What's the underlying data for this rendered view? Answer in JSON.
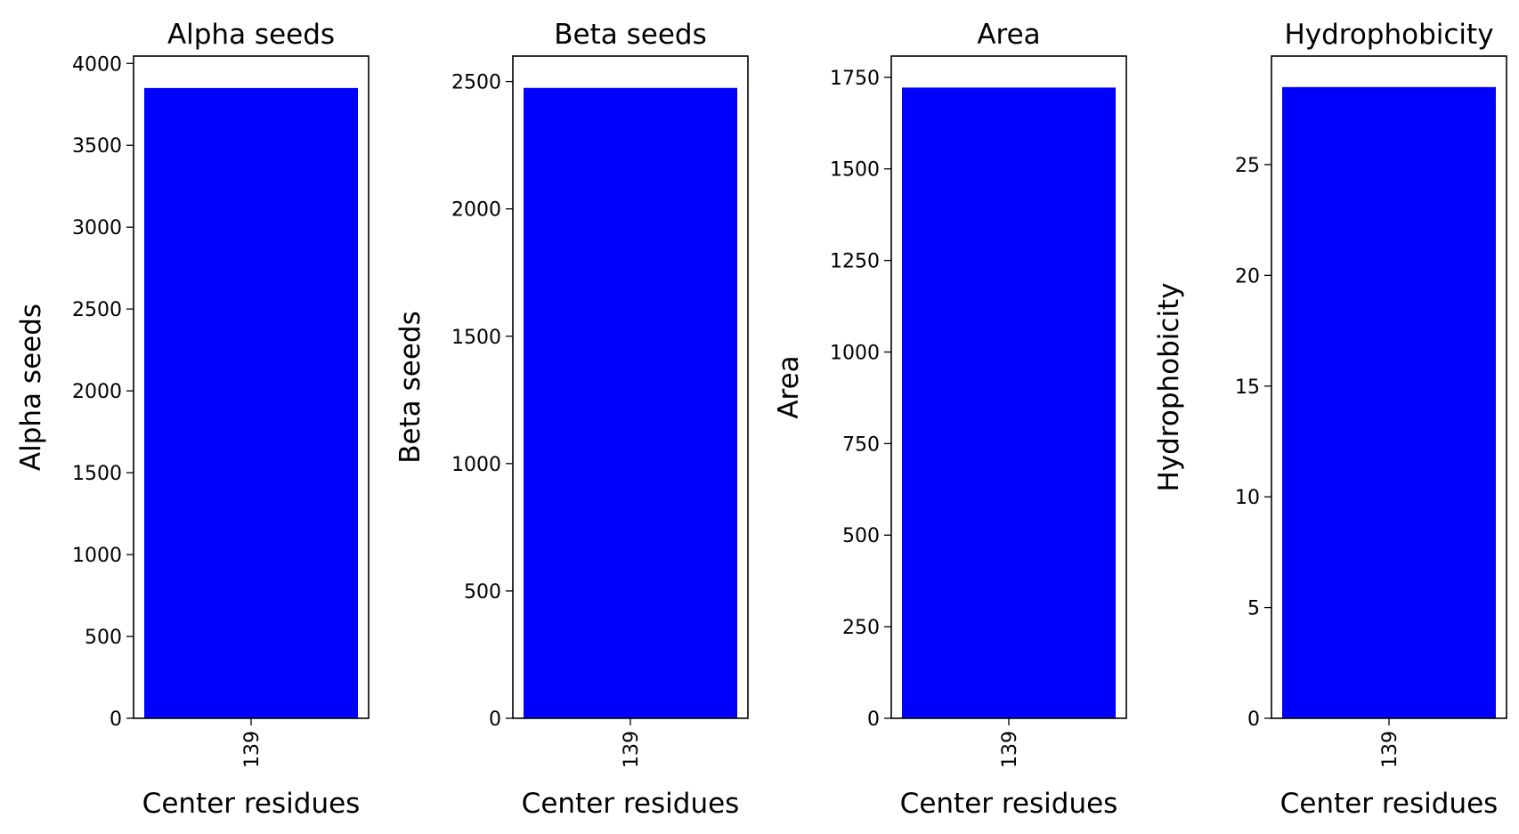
{
  "chart_data": [
    {
      "type": "bar",
      "title": "Alpha seeds",
      "xlabel": "Center residues",
      "ylabel": "Alpha seeds",
      "categories": [
        "139"
      ],
      "values": [
        3850
      ],
      "ylim": [
        0,
        4045
      ],
      "yticks": [
        0,
        500,
        1000,
        1500,
        2000,
        2500,
        3000,
        3500,
        4000
      ],
      "bar_color": "#0000ff",
      "grid": false,
      "legend": "none"
    },
    {
      "type": "bar",
      "title": "Beta seeds",
      "xlabel": "Center residues",
      "ylabel": "Beta seeds",
      "categories": [
        "139"
      ],
      "values": [
        2475
      ],
      "ylim": [
        0,
        2600
      ],
      "yticks": [
        0,
        500,
        1000,
        1500,
        2000,
        2500
      ],
      "bar_color": "#0000ff",
      "grid": false,
      "legend": "none"
    },
    {
      "type": "bar",
      "title": "Area",
      "xlabel": "Center residues",
      "ylabel": "Area",
      "categories": [
        "139"
      ],
      "values": [
        1722
      ],
      "ylim": [
        0,
        1808
      ],
      "yticks": [
        0,
        250,
        500,
        750,
        1000,
        1250,
        1500,
        1750
      ],
      "bar_color": "#0000ff",
      "grid": false,
      "legend": "none"
    },
    {
      "type": "bar",
      "title": "Hydrophobicity",
      "xlabel": "Center residues",
      "ylabel": "Hydrophobicity",
      "categories": [
        "139"
      ],
      "values": [
        28.5
      ],
      "ylim": [
        0,
        29.9
      ],
      "yticks": [
        0,
        5,
        10,
        15,
        20,
        25
      ],
      "bar_color": "#0000ff",
      "grid": false,
      "legend": "none"
    }
  ]
}
